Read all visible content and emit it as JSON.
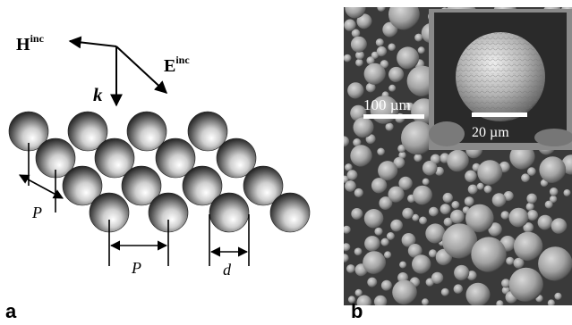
{
  "panel_a": {
    "letter": "a",
    "labels": {
      "h_field": "H",
      "h_superscript": "inc",
      "e_field": "E",
      "e_superscript": "inc",
      "wave_vector": "k",
      "period_diag": "P",
      "period_horiz": "P",
      "diameter": "d"
    }
  },
  "panel_b": {
    "letter": "b",
    "scale_bar_main": "100 µm",
    "scale_bar_inset": "20 µm"
  },
  "colors": {
    "sphere_highlight": "#ffffff",
    "sphere_shadow": "#1a1a1a",
    "sem_background": "#3a3a3a",
    "inset_frame": "#8a8a8a"
  }
}
